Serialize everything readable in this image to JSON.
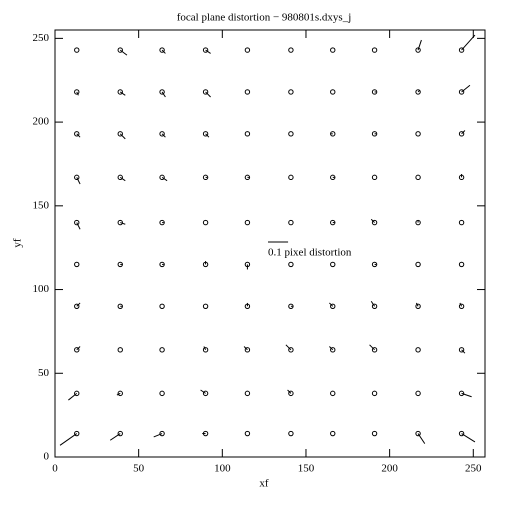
{
  "chart_data": {
    "type": "quiver",
    "title": "focal plane distortion − 980801s.dxys_j",
    "x_label": "xf",
    "y_label": "yf",
    "xlim": [
      0,
      257
    ],
    "ylim": [
      0,
      255
    ],
    "xticks": [
      0,
      50,
      100,
      150,
      200,
      250
    ],
    "yticks": [
      0,
      50,
      100,
      150,
      200,
      250
    ],
    "color": "#000000",
    "key": {
      "label": "0.1 pixel distortion",
      "length": 12
    },
    "x": [
      13,
      39,
      64,
      90,
      115,
      141,
      166,
      191,
      217,
      243,
      13,
      39,
      64,
      90,
      115,
      141,
      166,
      191,
      217,
      243,
      13,
      39,
      64,
      90,
      115,
      141,
      166,
      191,
      217,
      243,
      13,
      39,
      64,
      90,
      115,
      141,
      166,
      191,
      217,
      243,
      13,
      39,
      64,
      90,
      115,
      141,
      166,
      191,
      217,
      243,
      13,
      39,
      64,
      90,
      115,
      141,
      166,
      191,
      217,
      243,
      13,
      39,
      64,
      90,
      115,
      141,
      166,
      191,
      217,
      243,
      13,
      39,
      64,
      90,
      115,
      141,
      166,
      191,
      217,
      243,
      13,
      39,
      64,
      90,
      115,
      141,
      166,
      191,
      217,
      243,
      13,
      39,
      64,
      90,
      115,
      141,
      166,
      191,
      217,
      243
    ],
    "y": [
      14,
      14,
      14,
      14,
      14,
      14,
      14,
      14,
      14,
      14,
      38,
      38,
      38,
      38,
      38,
      38,
      38,
      38,
      38,
      38,
      64,
      64,
      64,
      64,
      64,
      64,
      64,
      64,
      64,
      64,
      90,
      90,
      90,
      90,
      90,
      90,
      90,
      90,
      90,
      90,
      115,
      115,
      115,
      115,
      115,
      115,
      115,
      115,
      115,
      115,
      140,
      140,
      140,
      140,
      140,
      140,
      140,
      140,
      140,
      140,
      167,
      167,
      167,
      167,
      167,
      167,
      167,
      167,
      167,
      167,
      193,
      193,
      193,
      193,
      193,
      193,
      193,
      193,
      193,
      193,
      218,
      218,
      218,
      218,
      218,
      218,
      218,
      218,
      218,
      218,
      243,
      243,
      243,
      243,
      243,
      243,
      243,
      243,
      243,
      243
    ],
    "u": [
      -10,
      -6,
      -5,
      -2,
      0,
      0,
      0,
      0,
      4,
      8,
      -5,
      -2,
      0,
      -3,
      0,
      -2,
      0,
      0,
      0,
      6,
      2,
      0,
      0,
      -1,
      -2,
      -3,
      -2,
      -3,
      0,
      2,
      2,
      1,
      0,
      0,
      0,
      1,
      -2,
      -2,
      -1,
      -1,
      0,
      1,
      1,
      0,
      0,
      0,
      0,
      1,
      0,
      0,
      2,
      3,
      1,
      0,
      0,
      0,
      1,
      -2,
      0,
      0,
      2,
      3,
      3,
      1,
      1,
      0,
      1,
      0,
      0,
      0,
      2,
      3,
      2,
      2,
      0,
      0,
      -1,
      1,
      0,
      2,
      1,
      3,
      2,
      3,
      0,
      0,
      0,
      1,
      1,
      5,
      0,
      4,
      2,
      3,
      0,
      0,
      0,
      0,
      2,
      8
    ],
    "v": [
      -7,
      -4,
      -2,
      0,
      0,
      0,
      0,
      0,
      -6,
      -5,
      -4,
      -1,
      0,
      2,
      0,
      2,
      0,
      0,
      0,
      -2,
      2,
      0,
      0,
      2,
      2,
      3,
      2,
      3,
      0,
      -2,
      2,
      0,
      0,
      0,
      2,
      0,
      2,
      3,
      2,
      2,
      0,
      0,
      0,
      2,
      -3,
      0,
      0,
      0,
      0,
      0,
      -4,
      -1,
      0,
      0,
      0,
      0,
      0,
      2,
      1,
      0,
      -4,
      -2,
      -2,
      0,
      0,
      0,
      0,
      0,
      0,
      2,
      -2,
      -3,
      -2,
      -2,
      0,
      0,
      0,
      0,
      0,
      2,
      -2,
      -2,
      -3,
      -3,
      0,
      0,
      0,
      0,
      1,
      4,
      0,
      -3,
      -2,
      -2,
      0,
      0,
      0,
      0,
      6,
      9
    ]
  }
}
